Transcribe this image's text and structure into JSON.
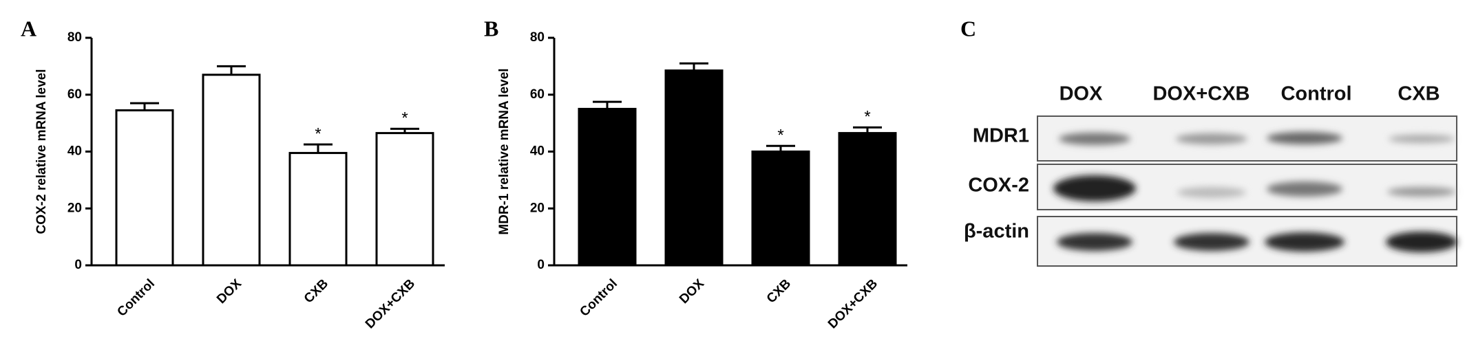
{
  "chart_data": [
    {
      "type": "bar",
      "panel_label": "A",
      "ylabel": "COX-2 relative mRNA level",
      "categories": [
        "Control",
        "DOX",
        "CXB",
        "DOX+CXB"
      ],
      "values": [
        54.5,
        67,
        39.5,
        46.5
      ],
      "errors": [
        2.5,
        3,
        3,
        1.5
      ],
      "significance": [
        null,
        null,
        "*",
        "*"
      ],
      "color": "#ffffff",
      "edgecolor": "#000000",
      "ylim": [
        0,
        80
      ],
      "yticks": [
        0,
        20,
        40,
        60,
        80
      ]
    },
    {
      "type": "bar",
      "panel_label": "B",
      "ylabel": "MDR-1 relative mRNA level",
      "categories": [
        "Control",
        "DOX",
        "CXB",
        "DOX+CXB"
      ],
      "values": [
        55,
        68.5,
        40,
        46.5
      ],
      "errors": [
        2.5,
        2.5,
        2,
        2
      ],
      "significance": [
        null,
        null,
        "*",
        "*"
      ],
      "color": "#000000",
      "edgecolor": "#000000",
      "ylim": [
        0,
        80
      ],
      "yticks": [
        0,
        20,
        40,
        60,
        80
      ]
    }
  ],
  "blot": {
    "panel_label": "C",
    "lanes": [
      "DOX",
      "DOX+CXB",
      "Control",
      "CXB"
    ],
    "rows": [
      "MDR1",
      "COX-2",
      "β-actin"
    ]
  }
}
